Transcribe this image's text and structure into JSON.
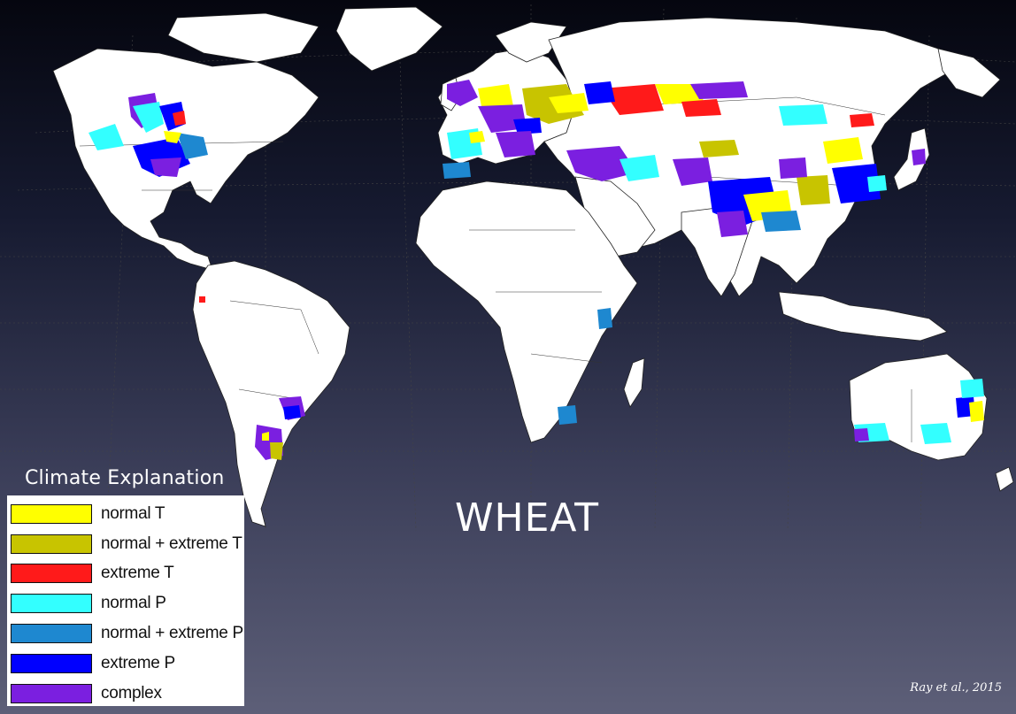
{
  "crop_title": "WHEAT",
  "credit": "Ray et al., 2015",
  "legend": {
    "title": "Climate Explanation",
    "items": [
      {
        "label": "normal T",
        "color": "#ffff00"
      },
      {
        "label": "normal + extreme T",
        "color": "#c8c400"
      },
      {
        "label": "extreme T",
        "color": "#ff1a1a"
      },
      {
        "label": "normal P",
        "color": "#33ffff"
      },
      {
        "label": "normal + extreme P",
        "color": "#1e88d0"
      },
      {
        "label": "extreme P",
        "color": "#0000ff"
      },
      {
        "label": "complex",
        "color": "#7b1fe0"
      }
    ]
  },
  "colors": {
    "land": "#ffffff",
    "ocean_top": "#05060f",
    "ocean_bottom": "#5d5f78"
  }
}
